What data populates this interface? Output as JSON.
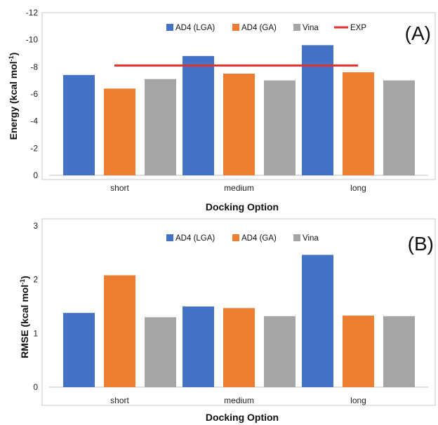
{
  "colors": {
    "AD4 (LGA)": "#4472C4",
    "AD4 (GA)": "#ED7D31",
    "Vina": "#A5A5A5",
    "EXP": "#E0312E"
  },
  "chart_data": [
    {
      "type": "bar",
      "panel_tag": "(A)",
      "categories": [
        "short",
        "medium",
        "long"
      ],
      "series": [
        {
          "name": "AD4 (LGA)",
          "values": [
            -7.4,
            -8.8,
            -9.6
          ]
        },
        {
          "name": "AD4 (GA)",
          "values": [
            -6.4,
            -7.5,
            -7.6
          ]
        },
        {
          "name": "Vina",
          "values": [
            -7.1,
            -7.0,
            -7.0
          ]
        }
      ],
      "reference_line": {
        "name": "EXP",
        "value": -8.1
      },
      "xlabel": "Docking Option",
      "ylabel": "Energy (kcal mol-1)",
      "ylabel_main": "Energy (kcal mol",
      "ylabel_sup": "-1",
      "ylabel_end": ")",
      "ylim": [
        0,
        -12
      ],
      "y_ticks": [
        "0",
        "-2",
        "-4",
        "-6",
        "-8",
        "-10",
        "-12"
      ],
      "y_tick_values": [
        0,
        -2,
        -4,
        -6,
        -8,
        -10,
        -12
      ],
      "axis_reversed": true,
      "grid": false,
      "legend_position": "top-right"
    },
    {
      "type": "bar",
      "panel_tag": "(B)",
      "categories": [
        "short",
        "medium",
        "long"
      ],
      "series": [
        {
          "name": "AD4 (LGA)",
          "values": [
            1.38,
            1.5,
            2.46
          ]
        },
        {
          "name": "AD4 (GA)",
          "values": [
            2.08,
            1.47,
            1.33
          ]
        },
        {
          "name": "Vina",
          "values": [
            1.3,
            1.32,
            1.32
          ]
        }
      ],
      "xlabel": "Docking Option",
      "ylabel": "RMSE (kcal mol-1)",
      "ylabel_main": "RMSE (kcal mol",
      "ylabel_sup": "-1",
      "ylabel_end": ")",
      "ylim": [
        0,
        3
      ],
      "y_ticks": [
        "0",
        "1",
        "2",
        "3"
      ],
      "y_tick_values": [
        0,
        1,
        2,
        3
      ],
      "axis_reversed": false,
      "grid": false,
      "legend_position": "top-center"
    }
  ]
}
